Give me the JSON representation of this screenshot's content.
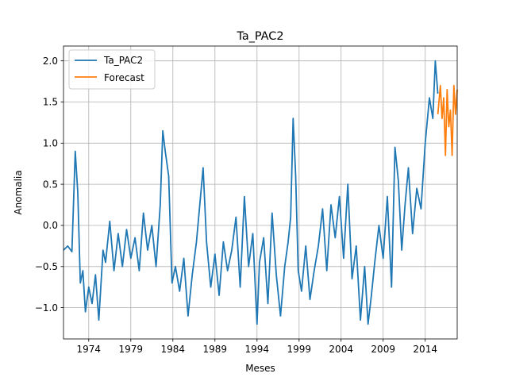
{
  "chart_data": {
    "type": "line",
    "title": "Ta_PAC2",
    "xlabel": "Meses",
    "ylabel": "Anomalia",
    "xlim": [
      1971.0,
      2017.8
    ],
    "ylim": [
      -1.38,
      2.18
    ],
    "grid": true,
    "legend_position": "upper-left",
    "x_ticks": [
      1974,
      1979,
      1984,
      1989,
      1994,
      1999,
      2004,
      2009,
      2014
    ],
    "x_tick_labels": [
      "1974",
      "1979",
      "1984",
      "1989",
      "1994",
      "1999",
      "2004",
      "2009",
      "2014"
    ],
    "y_ticks": [
      -1.0,
      -0.5,
      0.0,
      0.5,
      1.0,
      1.5,
      2.0
    ],
    "y_tick_labels": [
      "−1.0",
      "−0.5",
      "0.0",
      "0.5",
      "1.0",
      "1.5",
      "2.0"
    ],
    "series": [
      {
        "name": "Ta_PAC2",
        "color": "#1f77b4",
        "x": [
          1971.0,
          1971.5,
          1972.0,
          1972.4,
          1972.7,
          1973.0,
          1973.3,
          1973.6,
          1974.0,
          1974.4,
          1974.8,
          1975.2,
          1975.7,
          1976.0,
          1976.5,
          1977.0,
          1977.5,
          1978.0,
          1978.5,
          1979.0,
          1979.5,
          1980.0,
          1980.5,
          1981.0,
          1981.5,
          1982.0,
          1982.5,
          1982.8,
          1983.1,
          1983.5,
          1983.9,
          1984.3,
          1984.8,
          1985.3,
          1985.8,
          1986.3,
          1986.8,
          1987.2,
          1987.6,
          1988.0,
          1988.5,
          1989.0,
          1989.5,
          1990.0,
          1990.5,
          1991.0,
          1991.5,
          1992.0,
          1992.5,
          1993.0,
          1993.5,
          1994.0,
          1994.3,
          1994.8,
          1995.3,
          1995.8,
          1996.3,
          1996.8,
          1997.3,
          1997.7,
          1998.0,
          1998.3,
          1998.6,
          1998.9,
          1999.3,
          1999.8,
          2000.3,
          2000.8,
          2001.3,
          2001.8,
          2002.3,
          2002.8,
          2003.3,
          2003.8,
          2004.3,
          2004.8,
          2005.3,
          2005.8,
          2006.3,
          2006.8,
          2007.2,
          2007.6,
          2008.0,
          2008.5,
          2009.0,
          2009.5,
          2010.0,
          2010.4,
          2010.8,
          2011.2,
          2011.6,
          2012.0,
          2012.5,
          2013.0,
          2013.5,
          2014.0,
          2014.5,
          2014.9,
          2015.2,
          2015.5
        ],
        "values": [
          -0.3,
          -0.25,
          -0.32,
          0.9,
          0.4,
          -0.7,
          -0.55,
          -1.05,
          -0.75,
          -0.95,
          -0.6,
          -1.15,
          -0.3,
          -0.45,
          0.05,
          -0.55,
          -0.1,
          -0.5,
          -0.05,
          -0.4,
          -0.15,
          -0.55,
          0.15,
          -0.3,
          0.0,
          -0.5,
          0.25,
          1.15,
          0.9,
          0.6,
          -0.7,
          -0.5,
          -0.8,
          -0.4,
          -1.1,
          -0.6,
          -0.2,
          0.25,
          0.7,
          -0.2,
          -0.75,
          -0.35,
          -0.85,
          -0.2,
          -0.55,
          -0.3,
          0.1,
          -0.75,
          0.35,
          -0.5,
          -0.1,
          -1.2,
          -0.45,
          -0.15,
          -0.95,
          0.15,
          -0.6,
          -1.1,
          -0.5,
          -0.2,
          0.1,
          1.3,
          0.6,
          -0.55,
          -0.8,
          -0.25,
          -0.9,
          -0.55,
          -0.25,
          0.2,
          -0.55,
          0.25,
          -0.15,
          0.35,
          -0.4,
          0.5,
          -0.65,
          -0.25,
          -1.15,
          -0.5,
          -1.2,
          -0.85,
          -0.45,
          0.0,
          -0.4,
          0.35,
          -0.75,
          0.95,
          0.55,
          -0.3,
          0.25,
          0.7,
          -0.1,
          0.45,
          0.2,
          1.0,
          1.55,
          1.3,
          2.0,
          1.6
        ]
      },
      {
        "name": "Forecast",
        "color": "#ff7f0e",
        "x": [
          2015.5,
          2015.8,
          2016.0,
          2016.2,
          2016.4,
          2016.6,
          2016.8,
          2017.0,
          2017.2,
          2017.4,
          2017.6,
          2017.8
        ],
        "values": [
          1.35,
          1.7,
          1.3,
          1.55,
          0.85,
          1.65,
          1.2,
          1.4,
          0.85,
          1.7,
          1.35,
          1.65
        ]
      }
    ]
  }
}
